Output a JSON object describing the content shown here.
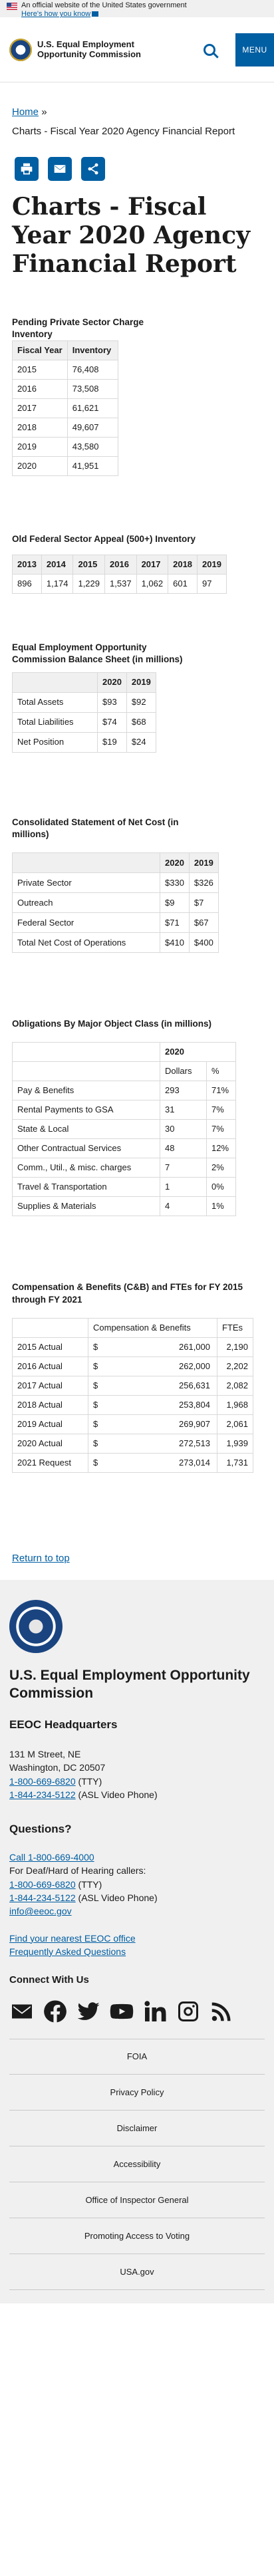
{
  "banner": {
    "text": "An official website of the United States government",
    "link": "Here's how you know"
  },
  "header": {
    "site_title": "U.S. Equal Employment Opportunity Commission",
    "menu_label": "MENU"
  },
  "breadcrumb": {
    "home": "Home",
    "separator": "»",
    "current": "Charts - Fiscal Year 2020 Agency Financial Report"
  },
  "share": {
    "icons": [
      "print-icon",
      "email-icon",
      "share-icon"
    ]
  },
  "page_title": "Charts - Fiscal Year 2020 Agency Financial Report",
  "chart_data": [
    {
      "type": "table",
      "title": "Pending Private Sector Charge Inventory",
      "columns": [
        "Fiscal Year",
        "Inventory"
      ],
      "rows": [
        [
          "2015",
          "76,408"
        ],
        [
          "2016",
          "73,508"
        ],
        [
          "2017",
          "61,621"
        ],
        [
          "2018",
          "49,607"
        ],
        [
          "2019",
          "43,580"
        ],
        [
          "2020",
          "41,951"
        ]
      ]
    },
    {
      "type": "table",
      "title": "Old Federal Sector Appeal (500+) Inventory",
      "columns": [
        "2013",
        "2014",
        "2015",
        "2016",
        "2017",
        "2018",
        "2019"
      ],
      "rows": [
        [
          "896",
          "1,174",
          "1,229",
          "1,537",
          "1,062",
          "601",
          "97"
        ]
      ]
    },
    {
      "type": "table",
      "title": "Equal Employment Opportunity Commission Balance Sheet (in millions)",
      "columns": [
        "",
        "2020",
        "2019"
      ],
      "rows": [
        [
          "Total Assets",
          "$93",
          "$92"
        ],
        [
          "Total Liabilities",
          "$74",
          "$68"
        ],
        [
          "Net Position",
          "$19",
          "$24"
        ]
      ]
    },
    {
      "type": "table",
      "title": "Consolidated Statement of Net Cost (in millions)",
      "columns": [
        "",
        "2020",
        "2019"
      ],
      "rows": [
        [
          "Private Sector",
          "$330",
          "$326"
        ],
        [
          "Outreach",
          "$9",
          "$7"
        ],
        [
          "Federal Sector",
          "$71",
          "$67"
        ],
        [
          "Total Net Cost of Operations",
          "$410",
          "$400"
        ]
      ]
    },
    {
      "type": "table",
      "title": "Obligations By Major Object Class (in millions)",
      "group_header": "2020",
      "columns": [
        "",
        "Dollars",
        "%"
      ],
      "rows": [
        [
          "Pay & Benefits",
          "293",
          "71%"
        ],
        [
          "Rental Payments to GSA",
          "31",
          "7%"
        ],
        [
          "State & Local",
          "30",
          "7%"
        ],
        [
          "Other Contractual Services",
          "48",
          "12%"
        ],
        [
          "Comm., Util., & misc. charges",
          "7",
          "2%"
        ],
        [
          "Travel & Transportation",
          "1",
          "0%"
        ],
        [
          "Supplies & Materials",
          "4",
          "1%"
        ]
      ]
    },
    {
      "type": "table",
      "title": "Compensation & Benefits (C&B) and FTEs for FY 2015 through FY 2021",
      "columns": [
        "",
        "Compensation & Benefits",
        "FTEs"
      ],
      "rows": [
        [
          "2015 Actual",
          "$",
          "261,000",
          "2,190"
        ],
        [
          "2016 Actual",
          "$",
          "262,000",
          "2,202"
        ],
        [
          "2017 Actual",
          "$",
          "256,631",
          "2,082"
        ],
        [
          "2018 Actual",
          "$",
          "253,804",
          "1,968"
        ],
        [
          "2019 Actual",
          "$",
          "269,907",
          "2,061"
        ],
        [
          "2020 Actual",
          "$",
          "272,513",
          "1,939"
        ],
        [
          "2021 Request",
          "$",
          "273,014",
          "1,731"
        ]
      ]
    }
  ],
  "return_top": "Return to top",
  "footer": {
    "org": "U.S. Equal Employment Opportunity Commission",
    "hq_heading": "EEOC Headquarters",
    "address1": "131 M Street, NE",
    "address2": "Washington, DC 20507",
    "phone_tty": "1-800-669-6820",
    "tty": " (TTY)",
    "phone_asl": "1-844-234-5122",
    "asl": " (ASL Video Phone)",
    "questions_heading": "Questions?",
    "call_link": "Call 1-800-669-4000",
    "deaf_text": "For Deaf/Hard of Hearing callers:",
    "q_phone_tty": "1-800-669-6820",
    "q_tty": " (TTY)",
    "q_phone_asl": "1-844-234-5122",
    "q_asl": " (ASL Video Phone)",
    "email": "info@eeoc.gov",
    "find_office": "Find your nearest EEOC office",
    "faq": "Frequently Asked Questions",
    "connect_heading": "Connect With Us",
    "social_icons": [
      "email-icon",
      "facebook-icon",
      "twitter-icon",
      "youtube-icon",
      "linkedin-icon",
      "instagram-icon",
      "rss-icon"
    ],
    "links": [
      "FOIA",
      "Privacy Policy",
      "Disclaimer",
      "Accessibility",
      "Office of Inspector General",
      "Promoting Access to Voting",
      "USA.gov"
    ]
  }
}
